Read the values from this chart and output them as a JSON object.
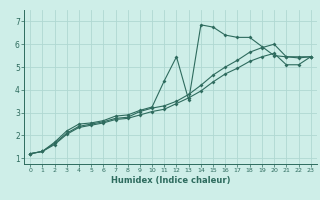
{
  "xlabel": "Humidex (Indice chaleur)",
  "bg_color": "#ceeee8",
  "line_color": "#2e6b5e",
  "grid_color": "#b0d8d2",
  "xlim": [
    -0.5,
    23.5
  ],
  "ylim": [
    0.75,
    7.5
  ],
  "xticks": [
    0,
    1,
    2,
    3,
    4,
    5,
    6,
    7,
    8,
    9,
    10,
    11,
    12,
    13,
    14,
    15,
    16,
    17,
    18,
    19,
    20,
    21,
    22,
    23
  ],
  "yticks": [
    1,
    2,
    3,
    4,
    5,
    6,
    7
  ],
  "line1_x": [
    0,
    1,
    2,
    3,
    4,
    5,
    6,
    7,
    8,
    9,
    10,
    11,
    12,
    13,
    14,
    15,
    16,
    17,
    18,
    19,
    20,
    21,
    22,
    23
  ],
  "line1_y": [
    1.2,
    1.3,
    1.7,
    2.2,
    2.5,
    2.55,
    2.65,
    2.85,
    2.9,
    3.1,
    3.25,
    4.4,
    5.45,
    3.55,
    6.85,
    6.75,
    6.4,
    6.3,
    6.3,
    5.9,
    5.5,
    5.45,
    5.45,
    5.45
  ],
  "line2_x": [
    0,
    1,
    2,
    3,
    4,
    5,
    6,
    7,
    8,
    9,
    10,
    11,
    12,
    13,
    14,
    15,
    16,
    17,
    18,
    19,
    20,
    21,
    22,
    23
  ],
  "line2_y": [
    1.2,
    1.3,
    1.65,
    2.1,
    2.4,
    2.5,
    2.6,
    2.75,
    2.8,
    3.05,
    3.2,
    3.3,
    3.5,
    3.8,
    4.2,
    4.65,
    5.0,
    5.3,
    5.65,
    5.85,
    6.0,
    5.45,
    5.4,
    5.45
  ],
  "line3_x": [
    0,
    1,
    2,
    3,
    4,
    5,
    6,
    7,
    8,
    9,
    10,
    11,
    12,
    13,
    14,
    15,
    16,
    17,
    18,
    19,
    20,
    21,
    22,
    23
  ],
  "line3_y": [
    1.2,
    1.3,
    1.6,
    2.05,
    2.35,
    2.45,
    2.55,
    2.7,
    2.75,
    2.9,
    3.05,
    3.15,
    3.4,
    3.65,
    3.95,
    4.35,
    4.7,
    4.95,
    5.25,
    5.45,
    5.6,
    5.1,
    5.1,
    5.45
  ]
}
